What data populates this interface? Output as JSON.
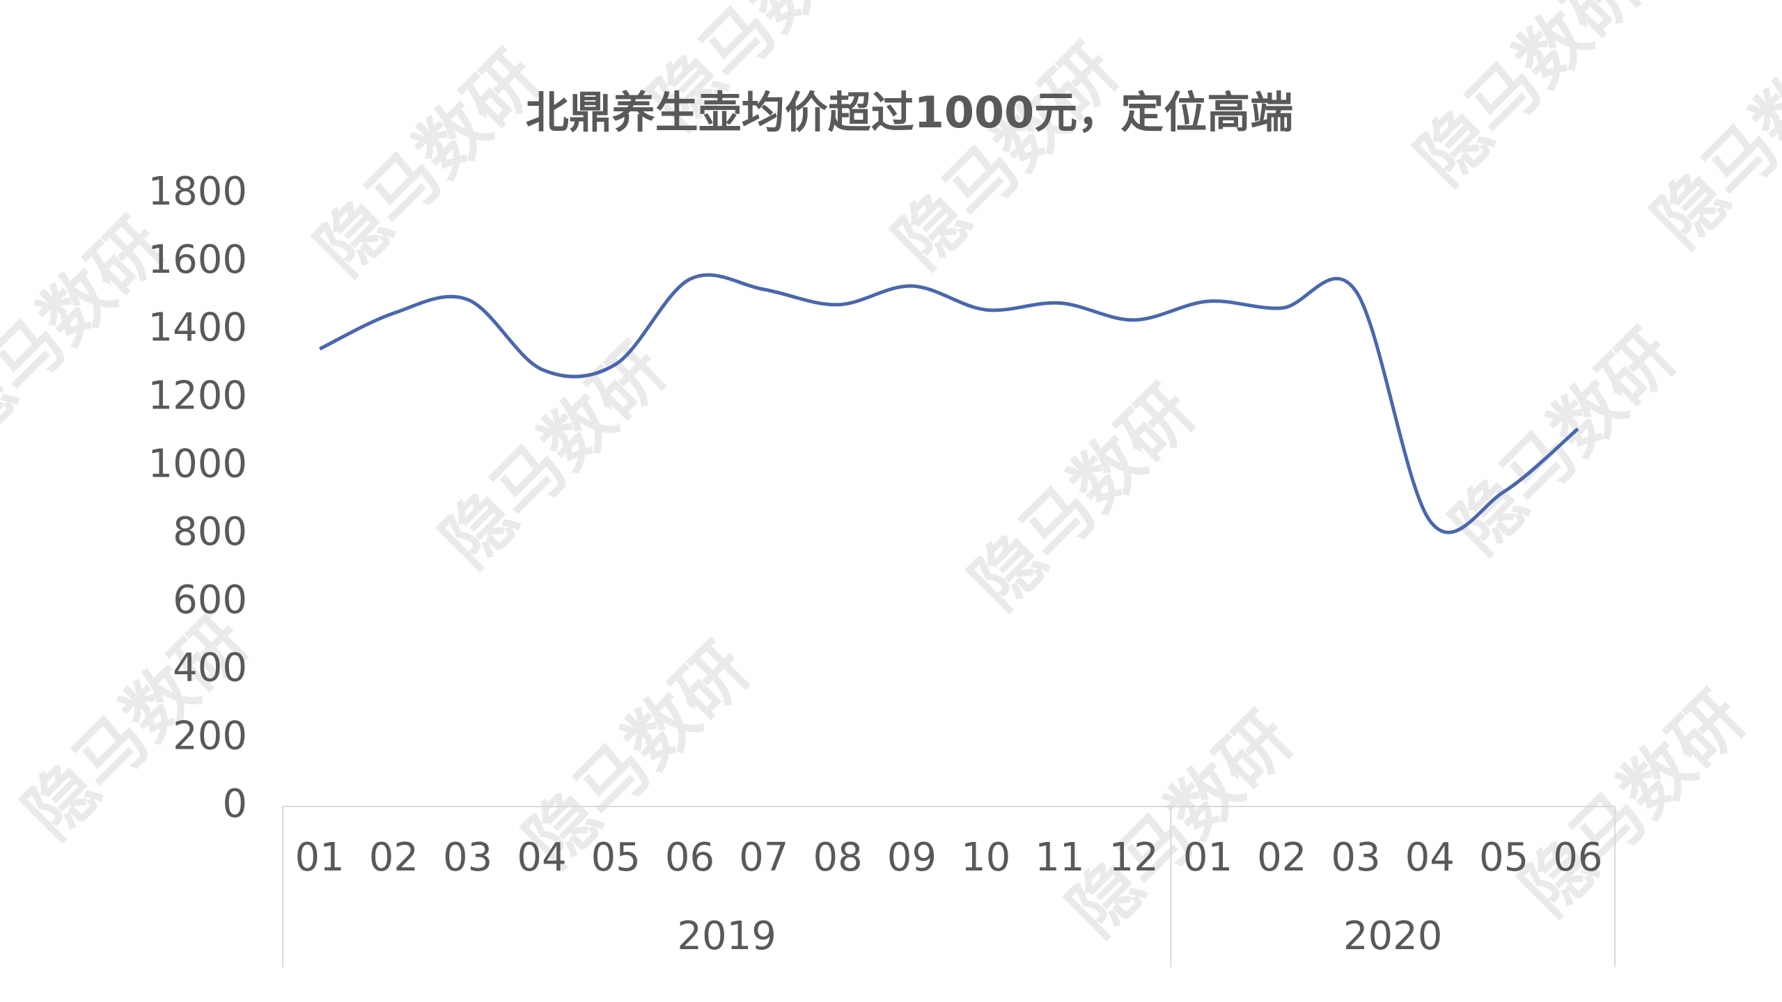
{
  "chart_data": {
    "type": "line",
    "title": "北鼎养生壶均价超过1000元，定位高端",
    "watermark": "隐马数研",
    "groups": [
      {
        "label": "2019",
        "categories": [
          "01",
          "02",
          "03",
          "04",
          "05",
          "06",
          "07",
          "08",
          "09",
          "10",
          "11",
          "12"
        ]
      },
      {
        "label": "2020",
        "categories": [
          "01",
          "02",
          "03",
          "04",
          "05",
          "06"
        ]
      }
    ],
    "series": [
      {
        "color": "#4a67ad",
        "values": [
          1345,
          1450,
          1490,
          1285,
          1300,
          1550,
          1520,
          1475,
          1530,
          1460,
          1480,
          1430,
          1485,
          1465,
          1515,
          840,
          925,
          1110
        ]
      }
    ],
    "ylim": [
      0,
      1800
    ],
    "yticks": [
      0,
      200,
      400,
      600,
      800,
      1000,
      1200,
      1400,
      1600,
      1800
    ],
    "grid": false
  }
}
